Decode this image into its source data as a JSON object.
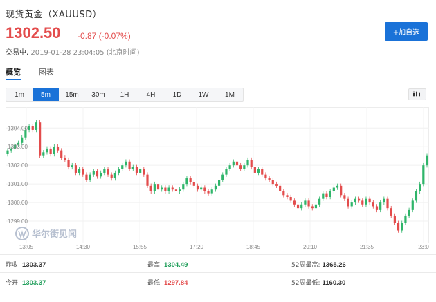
{
  "header": {
    "title": "现货黄金（XAUUSD）",
    "price": "1302.50",
    "change": "-0.87 (-0.07%)",
    "status_label": "交易中,",
    "status_time": "2019-01-28 23:04:05 (北京时间)",
    "add_button": "+加自选"
  },
  "tabs": [
    {
      "label": "概览",
      "active": true
    },
    {
      "label": "图表",
      "active": false
    }
  ],
  "periods": [
    {
      "label": "1m",
      "active": false
    },
    {
      "label": "5m",
      "active": true
    },
    {
      "label": "15m",
      "active": false
    },
    {
      "label": "30m",
      "active": false
    },
    {
      "label": "1H",
      "active": false
    },
    {
      "label": "4H",
      "active": false
    },
    {
      "label": "1D",
      "active": false
    },
    {
      "label": "1W",
      "active": false
    },
    {
      "label": "1M",
      "active": false
    }
  ],
  "watermark": "华尔街见闻",
  "colors": {
    "up": "#2fb56a",
    "down": "#e34c4c",
    "accent": "#1a72d8"
  },
  "chart_data": {
    "type": "candlestick",
    "interval": "5m",
    "x_ticks": [
      "13:05",
      "14:30",
      "15:55",
      "17:20",
      "18:45",
      "20:10",
      "21:35",
      "23:0"
    ],
    "y_ticks": [
      "1299.00",
      "1300.00",
      "1301.00",
      "1302.00",
      "1303.00",
      "1304.00"
    ],
    "ylim": [
      1298.0,
      1304.9
    ],
    "grid": true,
    "close": [
      1302.8,
      1302.9,
      1303.1,
      1303.2,
      1303.5,
      1303.9,
      1304.1,
      1303.9,
      1304.3,
      1302.5,
      1302.7,
      1302.9,
      1302.6,
      1303.0,
      1302.8,
      1302.4,
      1302.3,
      1301.9,
      1302.0,
      1301.6,
      1301.8,
      1301.5,
      1301.2,
      1301.5,
      1301.7,
      1301.4,
      1301.6,
      1301.8,
      1301.5,
      1301.3,
      1301.6,
      1301.8,
      1302.0,
      1302.2,
      1301.8,
      1301.9,
      1301.6,
      1301.8,
      1301.5,
      1300.9,
      1300.6,
      1301.0,
      1300.7,
      1300.8,
      1300.6,
      1300.8,
      1300.7,
      1300.6,
      1300.7,
      1301.0,
      1301.3,
      1301.1,
      1300.9,
      1300.7,
      1300.8,
      1300.6,
      1300.5,
      1300.7,
      1300.9,
      1301.2,
      1301.5,
      1301.8,
      1302.0,
      1302.2,
      1302.0,
      1301.8,
      1302.0,
      1302.3,
      1301.9,
      1301.6,
      1301.8,
      1301.5,
      1301.3,
      1301.2,
      1301.0,
      1300.9,
      1300.6,
      1300.4,
      1300.3,
      1300.1,
      1299.9,
      1299.7,
      1299.9,
      1300.1,
      1299.8,
      1299.7,
      1299.9,
      1300.2,
      1300.5,
      1300.3,
      1300.6,
      1300.8,
      1300.9,
      1300.4,
      1300.2,
      1299.8,
      1300.0,
      1300.2,
      1300.1,
      1299.9,
      1300.2,
      1300.0,
      1299.8,
      1299.6,
      1300.0,
      1300.2,
      1299.7,
      1299.3,
      1298.9,
      1298.5,
      1298.9,
      1299.3,
      1299.6,
      1300.1,
      1300.6,
      1301.0,
      1302.0,
      1302.5
    ],
    "open": [
      1302.6,
      1302.8,
      1302.9,
      1303.1,
      1303.2,
      1303.5,
      1303.9,
      1304.1,
      1303.9,
      1304.3,
      1302.5,
      1302.7,
      1302.9,
      1302.6,
      1303.0,
      1302.8,
      1302.4,
      1302.3,
      1301.9,
      1302.0,
      1301.6,
      1301.8,
      1301.5,
      1301.2,
      1301.5,
      1301.7,
      1301.4,
      1301.6,
      1301.8,
      1301.5,
      1301.3,
      1301.6,
      1301.8,
      1302.0,
      1302.2,
      1301.8,
      1301.9,
      1301.6,
      1301.8,
      1301.5,
      1300.9,
      1300.6,
      1301.0,
      1300.7,
      1300.8,
      1300.6,
      1300.8,
      1300.7,
      1300.6,
      1300.7,
      1301.0,
      1301.3,
      1301.1,
      1300.9,
      1300.7,
      1300.8,
      1300.6,
      1300.5,
      1300.7,
      1300.9,
      1301.2,
      1301.5,
      1301.8,
      1302.0,
      1302.2,
      1302.0,
      1301.8,
      1302.0,
      1302.3,
      1301.9,
      1301.6,
      1301.8,
      1301.5,
      1301.3,
      1301.2,
      1301.0,
      1300.9,
      1300.6,
      1300.4,
      1300.3,
      1300.1,
      1299.9,
      1299.7,
      1299.9,
      1300.1,
      1299.8,
      1299.7,
      1299.9,
      1300.2,
      1300.5,
      1300.3,
      1300.6,
      1300.8,
      1300.9,
      1300.4,
      1300.2,
      1299.8,
      1300.0,
      1300.2,
      1300.1,
      1299.9,
      1300.2,
      1300.0,
      1299.8,
      1299.6,
      1300.0,
      1300.2,
      1299.7,
      1299.3,
      1298.9,
      1298.5,
      1298.9,
      1299.3,
      1299.6,
      1300.1,
      1300.6,
      1301.0,
      1302.0
    ]
  },
  "stats": {
    "prev_close_label": "昨收:",
    "prev_close": "1303.37",
    "open_label": "今开:",
    "open": "1303.37",
    "high_label": "最高:",
    "high": "1304.49",
    "low_label": "最低:",
    "low": "1297.84",
    "w52_high_label": "52周最高:",
    "w52_high": "1365.26",
    "w52_low_label": "52周最低:",
    "w52_low": "1160.30"
  }
}
